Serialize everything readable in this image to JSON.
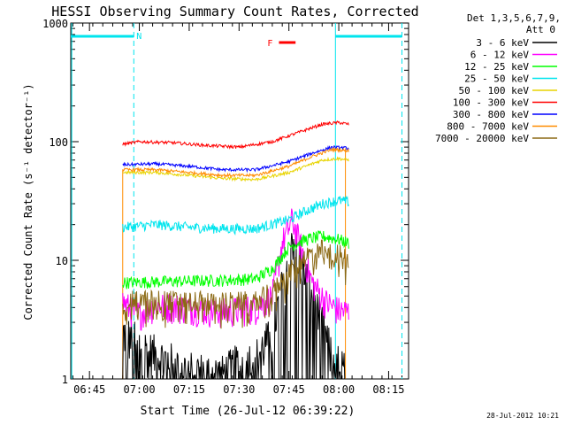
{
  "chart_data": {
    "type": "line",
    "title": "HESSI Observing Summary Count Rates, Corrected",
    "xlabel": "Start Time (26-Jul-12 06:39:22)",
    "ylabel": "Corrected Count Rate (s⁻¹ detector⁻¹)",
    "yscale": "log",
    "ylim": [
      1,
      1000
    ],
    "xlim": [
      "06:39:22",
      "08:21:00"
    ],
    "x_ticks": [
      "06:45",
      "07:00",
      "07:15",
      "07:30",
      "07:45",
      "08:00",
      "08:15"
    ],
    "y_ticks": [
      "1",
      "10",
      "100",
      "1000"
    ],
    "legend_header": [
      "Det 1,3,5,6,7,9,",
      "Att 0"
    ],
    "legend_position": "right-outside",
    "timestamp": "28-Jul-2012 10:21",
    "flags": [
      {
        "label": "N",
        "color": "#00e5ee",
        "start": "06:39:22",
        "end": "06:58:20"
      },
      {
        "label": "F",
        "color": "#ff0000",
        "start": "07:42:00",
        "end": "07:47:00"
      }
    ],
    "night_bars": [
      {
        "color": "#00e5ee",
        "start": "06:39:22",
        "end": "06:58:20"
      },
      {
        "color": "#00e5ee",
        "start": "07:59:00",
        "end": "08:19:00"
      }
    ],
    "markers": {
      "color": "#00e5ee",
      "solid": [
        "06:39:40",
        "07:59:00"
      ],
      "dashed": [
        "06:58:20",
        "08:19:00"
      ]
    },
    "series": [
      {
        "name": "3 - 6 keV",
        "color": "#000000",
        "points": [
          [
            "06:55:00",
            2.5
          ],
          [
            "07:00:00",
            2.0
          ],
          [
            "07:05:00",
            1.6
          ],
          [
            "07:15:00",
            1.2
          ],
          [
            "07:25:00",
            1.1
          ],
          [
            "07:30:00",
            1.4
          ],
          [
            "07:35:00",
            1.5
          ],
          [
            "07:40:00",
            2.5
          ],
          [
            "07:44:00",
            8
          ],
          [
            "07:46:00",
            17
          ],
          [
            "07:48:00",
            12
          ],
          [
            "07:51:00",
            6
          ],
          [
            "07:55:00",
            3
          ],
          [
            "07:58:00",
            1.5
          ],
          [
            "08:02:00",
            1.2
          ]
        ]
      },
      {
        "name": "6 - 12 keV",
        "color": "#ff00ff",
        "points": [
          [
            "06:55:00",
            4.5
          ],
          [
            "06:59:00",
            3.5
          ],
          [
            "07:05:00",
            4.2
          ],
          [
            "07:15:00",
            4.0
          ],
          [
            "07:25:00",
            3.7
          ],
          [
            "07:35:00",
            4.0
          ],
          [
            "07:40:00",
            5
          ],
          [
            "07:43:00",
            14
          ],
          [
            "07:46:00",
            22
          ],
          [
            "07:49:00",
            12
          ],
          [
            "07:52:00",
            6.5
          ],
          [
            "07:56:00",
            4.5
          ],
          [
            "08:00:00",
            3.8
          ],
          [
            "08:03:00",
            3.7
          ]
        ]
      },
      {
        "name": "12 - 25 keV",
        "color": "#00ff00",
        "points": [
          [
            "06:55:00",
            6.5
          ],
          [
            "07:05:00",
            6.6
          ],
          [
            "07:15:00",
            6.7
          ],
          [
            "07:25:00",
            6.8
          ],
          [
            "07:35:00",
            7.0
          ],
          [
            "07:40:00",
            8.5
          ],
          [
            "07:45:00",
            13
          ],
          [
            "07:50:00",
            15
          ],
          [
            "07:55:00",
            16
          ],
          [
            "08:00:00",
            15
          ],
          [
            "08:03:00",
            14
          ]
        ]
      },
      {
        "name": "25 - 50 keV",
        "color": "#00e5ee",
        "points": [
          [
            "06:55:00",
            19
          ],
          [
            "07:05:00",
            20
          ],
          [
            "07:15:00",
            19
          ],
          [
            "07:25:00",
            18.5
          ],
          [
            "07:35:00",
            18.5
          ],
          [
            "07:45:00",
            22
          ],
          [
            "07:50:00",
            26
          ],
          [
            "07:55:00",
            30
          ],
          [
            "08:00:00",
            32
          ],
          [
            "08:03:00",
            31
          ]
        ]
      },
      {
        "name": "50 - 100 keV",
        "color": "#e8d400",
        "points": [
          [
            "06:55:00",
            55
          ],
          [
            "07:05:00",
            55
          ],
          [
            "07:15:00",
            52
          ],
          [
            "07:25:00",
            49
          ],
          [
            "07:35:00",
            48
          ],
          [
            "07:45:00",
            55
          ],
          [
            "07:50:00",
            62
          ],
          [
            "07:55:00",
            70
          ],
          [
            "08:00:00",
            72
          ],
          [
            "08:03:00",
            70
          ]
        ]
      },
      {
        "name": "100 - 300 keV",
        "color": "#ff0000",
        "points": [
          [
            "06:55:00",
            95
          ],
          [
            "07:00:00",
            100
          ],
          [
            "07:10:00",
            98
          ],
          [
            "07:20:00",
            93
          ],
          [
            "07:30:00",
            90
          ],
          [
            "07:40:00",
            100
          ],
          [
            "07:48:00",
            120
          ],
          [
            "07:55:00",
            140
          ],
          [
            "08:00:00",
            145
          ],
          [
            "08:03:00",
            140
          ]
        ]
      },
      {
        "name": "300 - 800 keV",
        "color": "#0000ff",
        "points": [
          [
            "06:55:00",
            64
          ],
          [
            "07:05:00",
            65
          ],
          [
            "07:15:00",
            62
          ],
          [
            "07:25:00",
            58
          ],
          [
            "07:35:00",
            58
          ],
          [
            "07:45:00",
            68
          ],
          [
            "07:52:00",
            80
          ],
          [
            "07:58:00",
            90
          ],
          [
            "08:03:00",
            88
          ]
        ]
      },
      {
        "name": "800 - 7000 keV",
        "color": "#ff8c00",
        "points": [
          [
            "06:55:00",
            58
          ],
          [
            "07:05:00",
            58
          ],
          [
            "07:15:00",
            55
          ],
          [
            "07:25:00",
            52
          ],
          [
            "07:35:00",
            52
          ],
          [
            "07:45:00",
            62
          ],
          [
            "07:52:00",
            75
          ],
          [
            "07:58:00",
            86
          ],
          [
            "08:03:00",
            84
          ]
        ]
      },
      {
        "name": "7000 - 20000 keV",
        "color": "#8b6914",
        "points": [
          [
            "06:55:00",
            4.6
          ],
          [
            "07:05:00",
            4.7
          ],
          [
            "07:15:00",
            4.6
          ],
          [
            "07:25:00",
            4.5
          ],
          [
            "07:35:00",
            4.6
          ],
          [
            "07:40:00",
            5.5
          ],
          [
            "07:45:00",
            8
          ],
          [
            "07:50:00",
            11
          ],
          [
            "07:55:00",
            12.5
          ],
          [
            "08:00:00",
            11.5
          ],
          [
            "08:03:00",
            10
          ]
        ]
      }
    ]
  }
}
